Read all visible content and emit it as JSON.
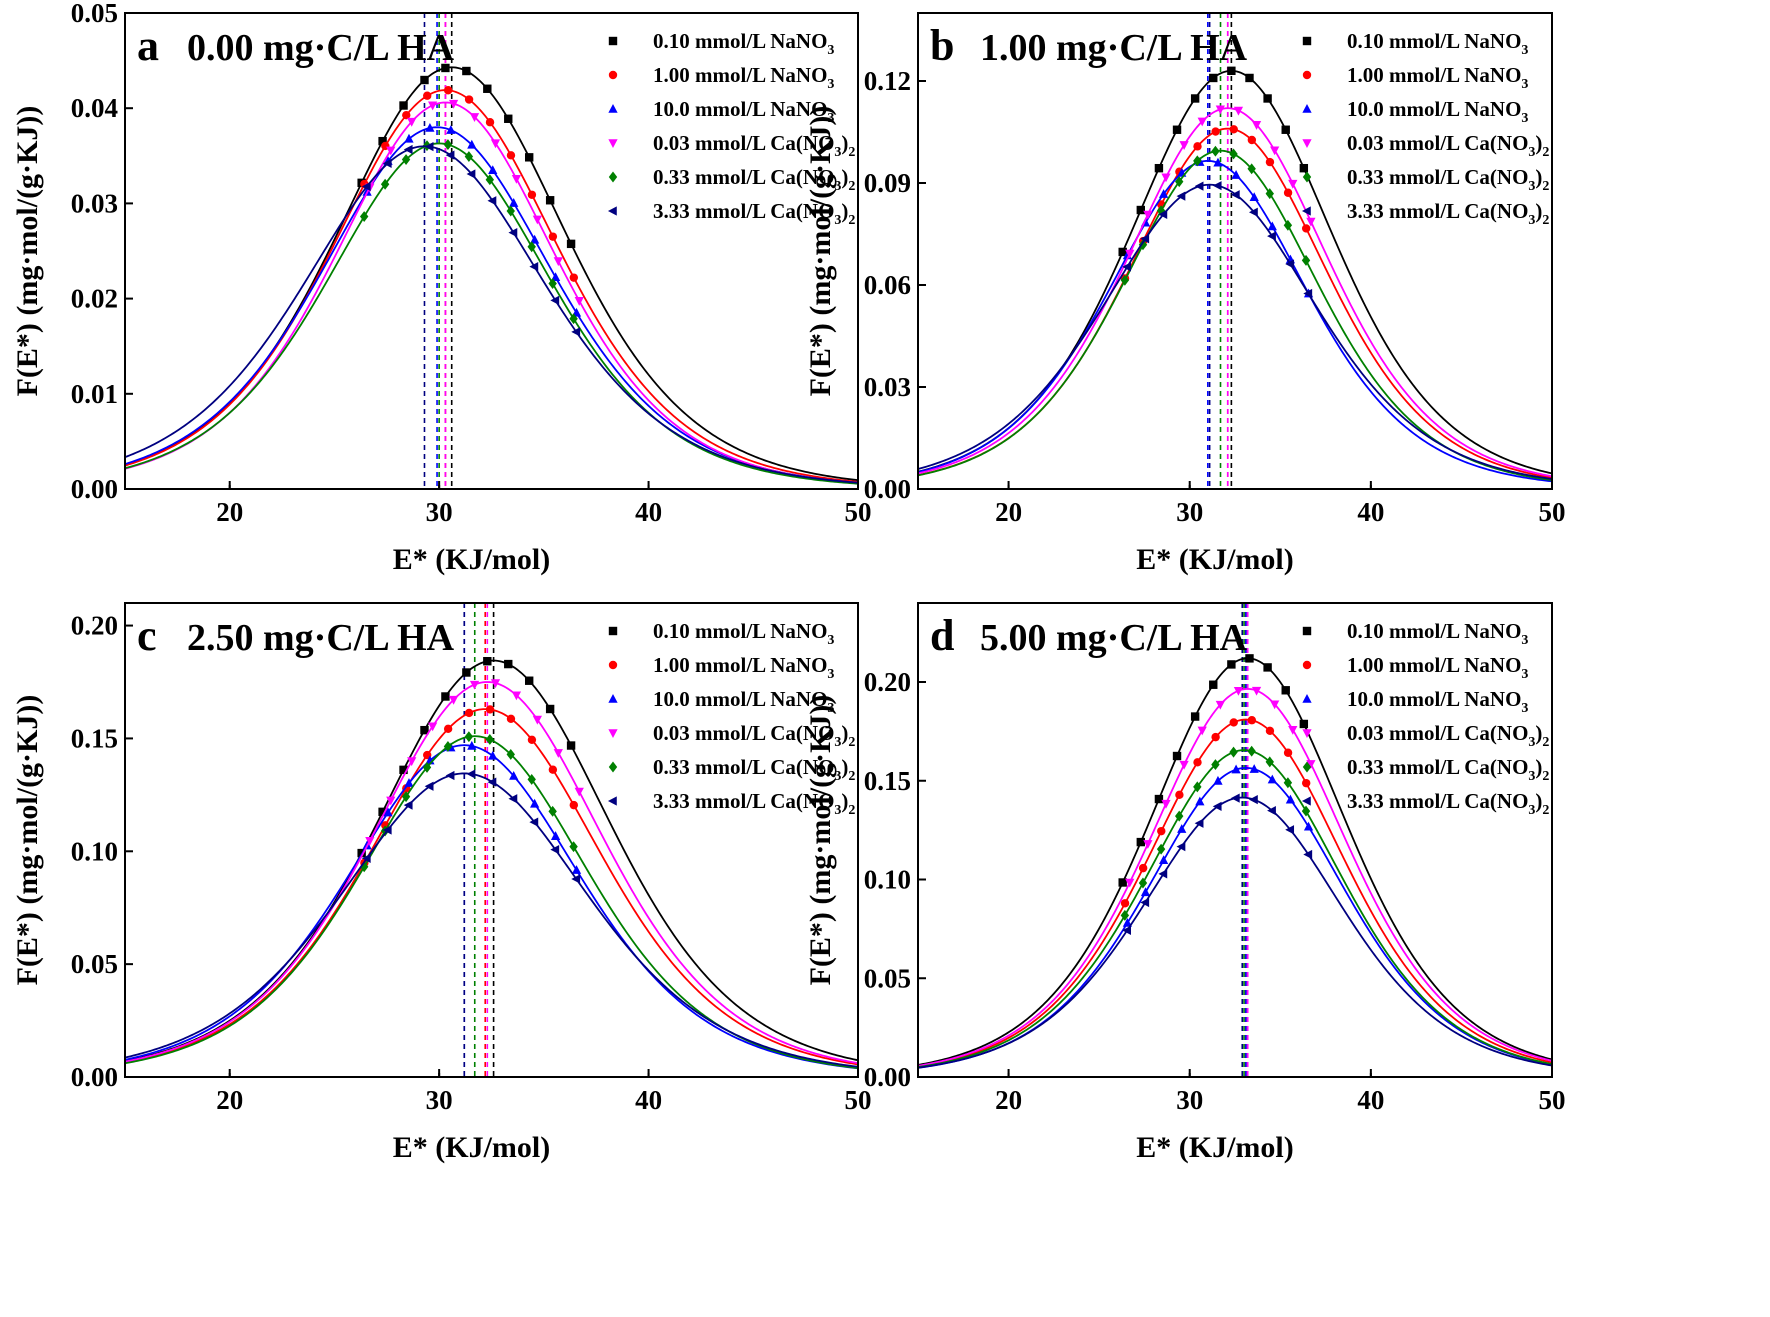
{
  "figure": {
    "xlabel": "E* (KJ/mol)",
    "ylabel": "F(E*) (mg·mol/(g·KJ))"
  },
  "legend_entries": [
    {
      "label": "0.10 mmol/L NaNO",
      "sub": "3",
      "color": "#000000",
      "marker": "square"
    },
    {
      "label": "1.00 mmol/L NaNO",
      "sub": "3",
      "color": "#ff0000",
      "marker": "circle"
    },
    {
      "label": "10.0 mmol/L NaNO",
      "sub": "3",
      "color": "#0000ff",
      "marker": "triangle-up"
    },
    {
      "label": "0.03 mmol/L Ca(NO",
      "sub": "3",
      "tail": ")",
      "sub2": "2",
      "color": "#ff00ff",
      "marker": "triangle-down"
    },
    {
      "label": "0.33 mmol/L Ca(NO",
      "sub": "3",
      "tail": ")",
      "sub2": "2",
      "color": "#008000",
      "marker": "diamond"
    },
    {
      "label": "3.33 mmol/L Ca(NO",
      "sub": "3",
      "tail": ")",
      "sub2": "2",
      "color": "#000080",
      "marker": "triangle-left"
    }
  ],
  "chart_data": [
    {
      "type": "line",
      "letter": "a",
      "title": "0.00 mg·C/L HA",
      "xlim": [
        15,
        50
      ],
      "ylim": [
        0,
        0.05
      ],
      "xticks": [
        "20",
        "30",
        "40",
        "50"
      ],
      "xtick_values": [
        20,
        30,
        40,
        50
      ],
      "yticks": [
        "0.00",
        "0.01",
        "0.02",
        "0.03",
        "0.04",
        "0.05"
      ],
      "ytick_values": [
        0,
        0.01,
        0.02,
        0.03,
        0.04,
        0.05
      ],
      "series": [
        {
          "name": "0.10 mmol/L NaNO3",
          "peak_x": 30.6,
          "peak_y": 0.0443,
          "sigma": 3.7
        },
        {
          "name": "1.00 mmol/L NaNO3",
          "peak_x": 30.3,
          "peak_y": 0.0419,
          "sigma": 3.65
        },
        {
          "name": "10.0 mmol/L NaNO3",
          "peak_x": 29.9,
          "peak_y": 0.038,
          "sigma": 3.7
        },
        {
          "name": "0.03 mmol/L Ca(NO3)2",
          "peak_x": 30.3,
          "peak_y": 0.0406,
          "sigma": 3.55
        },
        {
          "name": "0.33 mmol/L Ca(NO3)2",
          "peak_x": 30.0,
          "peak_y": 0.0363,
          "sigma": 3.6
        },
        {
          "name": "3.33 mmol/L Ca(NO3)2",
          "peak_x": 29.3,
          "peak_y": 0.036,
          "sigma": 3.85
        }
      ]
    },
    {
      "type": "line",
      "letter": "b",
      "title": "1.00 mg·C/L HA",
      "xlim": [
        15,
        50
      ],
      "ylim": [
        0,
        0.14
      ],
      "xticks": [
        "20",
        "30",
        "40",
        "50"
      ],
      "xtick_values": [
        20,
        30,
        40,
        50
      ],
      "yticks": [
        "0.00",
        "0.03",
        "0.06",
        "0.09",
        "0.12"
      ],
      "ytick_values": [
        0,
        0.03,
        0.06,
        0.09,
        0.12
      ],
      "series": [
        {
          "name": "0.10 mmol/L NaNO3",
          "peak_x": 32.3,
          "peak_y": 0.123,
          "sigma": 3.8
        },
        {
          "name": "1.00 mmol/L NaNO3",
          "peak_x": 32.1,
          "peak_y": 0.106,
          "sigma": 3.7
        },
        {
          "name": "10.0 mmol/L NaNO3",
          "peak_x": 31.0,
          "peak_y": 0.0965,
          "sigma": 3.7
        },
        {
          "name": "0.03 mmol/L Ca(NO3)2",
          "peak_x": 32.1,
          "peak_y": 0.112,
          "sigma": 3.75
        },
        {
          "name": "0.33 mmol/L Ca(NO3)2",
          "peak_x": 31.7,
          "peak_y": 0.0995,
          "sigma": 3.65
        },
        {
          "name": "3.33 mmol/L Ca(NO3)2",
          "peak_x": 31.1,
          "peak_y": 0.0895,
          "sigma": 3.95
        }
      ]
    },
    {
      "type": "line",
      "letter": "c",
      "title": "2.50 mg·C/L HA",
      "xlim": [
        15,
        50
      ],
      "ylim": [
        0,
        0.21
      ],
      "xticks": [
        "20",
        "30",
        "40",
        "50"
      ],
      "xtick_values": [
        20,
        30,
        40,
        50
      ],
      "yticks": [
        "0.00",
        "0.05",
        "0.10",
        "0.15",
        "0.20"
      ],
      "ytick_values": [
        0,
        0.05,
        0.1,
        0.15,
        0.2
      ],
      "series": [
        {
          "name": "0.10 mmol/L NaNO3",
          "peak_x": 32.6,
          "peak_y": 0.1845,
          "sigma": 3.8
        },
        {
          "name": "1.00 mmol/L NaNO3",
          "peak_x": 32.2,
          "peak_y": 0.163,
          "sigma": 3.75
        },
        {
          "name": "10.0 mmol/L NaNO3",
          "peak_x": 31.2,
          "peak_y": 0.147,
          "sigma": 3.75
        },
        {
          "name": "0.03 mmol/L Ca(NO3)2",
          "peak_x": 32.3,
          "peak_y": 0.175,
          "sigma": 3.75
        },
        {
          "name": "0.33 mmol/L Ca(NO3)2",
          "peak_x": 31.7,
          "peak_y": 0.151,
          "sigma": 3.65
        },
        {
          "name": "3.33 mmol/L Ca(NO3)2",
          "peak_x": 31.2,
          "peak_y": 0.1345,
          "sigma": 3.95
        }
      ]
    },
    {
      "type": "line",
      "letter": "d",
      "title": "5.00 mg·C/L HA",
      "xlim": [
        15,
        50
      ],
      "ylim": [
        0,
        0.24
      ],
      "xticks": [
        "20",
        "30",
        "40",
        "50"
      ],
      "xtick_values": [
        20,
        30,
        40,
        50
      ],
      "yticks": [
        "0.00",
        "0.05",
        "0.10",
        "0.15",
        "0.20"
      ],
      "ytick_values": [
        0,
        0.05,
        0.1,
        0.15,
        0.2
      ],
      "series": [
        {
          "name": "0.10 mmol/L NaNO3",
          "peak_x": 33.2,
          "peak_y": 0.212,
          "sigma": 3.7
        },
        {
          "name": "1.00 mmol/L NaNO3",
          "peak_x": 33.1,
          "peak_y": 0.181,
          "sigma": 3.7
        },
        {
          "name": "10.0 mmol/L NaNO3",
          "peak_x": 33.1,
          "peak_y": 0.1565,
          "sigma": 3.7
        },
        {
          "name": "0.03 mmol/L Ca(NO3)2",
          "peak_x": 33.2,
          "peak_y": 0.1965,
          "sigma": 3.7
        },
        {
          "name": "0.33 mmol/L Ca(NO3)2",
          "peak_x": 33.0,
          "peak_y": 0.1655,
          "sigma": 3.7
        },
        {
          "name": "3.33 mmol/L Ca(NO3)2",
          "peak_x": 32.9,
          "peak_y": 0.1415,
          "sigma": 3.75
        }
      ]
    }
  ]
}
